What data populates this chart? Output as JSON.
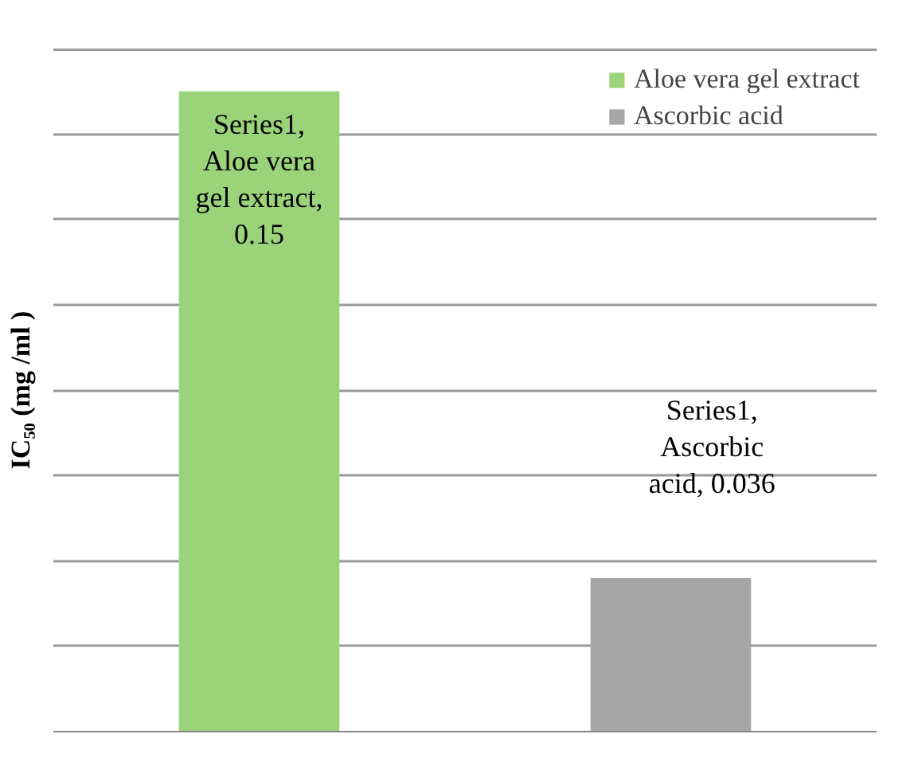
{
  "chart_data": {
    "type": "bar",
    "ylabel": "IC₅₀ (mg /ml )",
    "categories": [
      null,
      null
    ],
    "series": [
      {
        "name": "Aloe vera gel extract",
        "color": "#9bd37a",
        "values": [
          0.15,
          null
        ],
        "value_labels": [
          "Series1, Aloe vera gel extract, 0.15",
          null
        ]
      },
      {
        "name": "Ascorbic acid",
        "color": "#a6a6a6",
        "values": [
          null,
          0.036
        ],
        "value_labels": [
          null,
          "Series1, Ascorbic acid, 0.036"
        ]
      }
    ],
    "ylim": [
      0,
      0.16
    ],
    "yticks": [
      {
        "value": 0,
        "label": null
      },
      {
        "value": 0.02,
        "label": null
      },
      {
        "value": 0.04,
        "label": null
      },
      {
        "value": 0.06,
        "label": null
      },
      {
        "value": 0.08,
        "label": null
      },
      {
        "value": 0.1,
        "label": null
      },
      {
        "value": 0.12,
        "label": null
      },
      {
        "value": 0.14,
        "label": null
      },
      {
        "value": 0.16,
        "label": null
      }
    ],
    "grid": "y",
    "legend": "top right",
    "tick_labels": false,
    "stacked": true
  }
}
